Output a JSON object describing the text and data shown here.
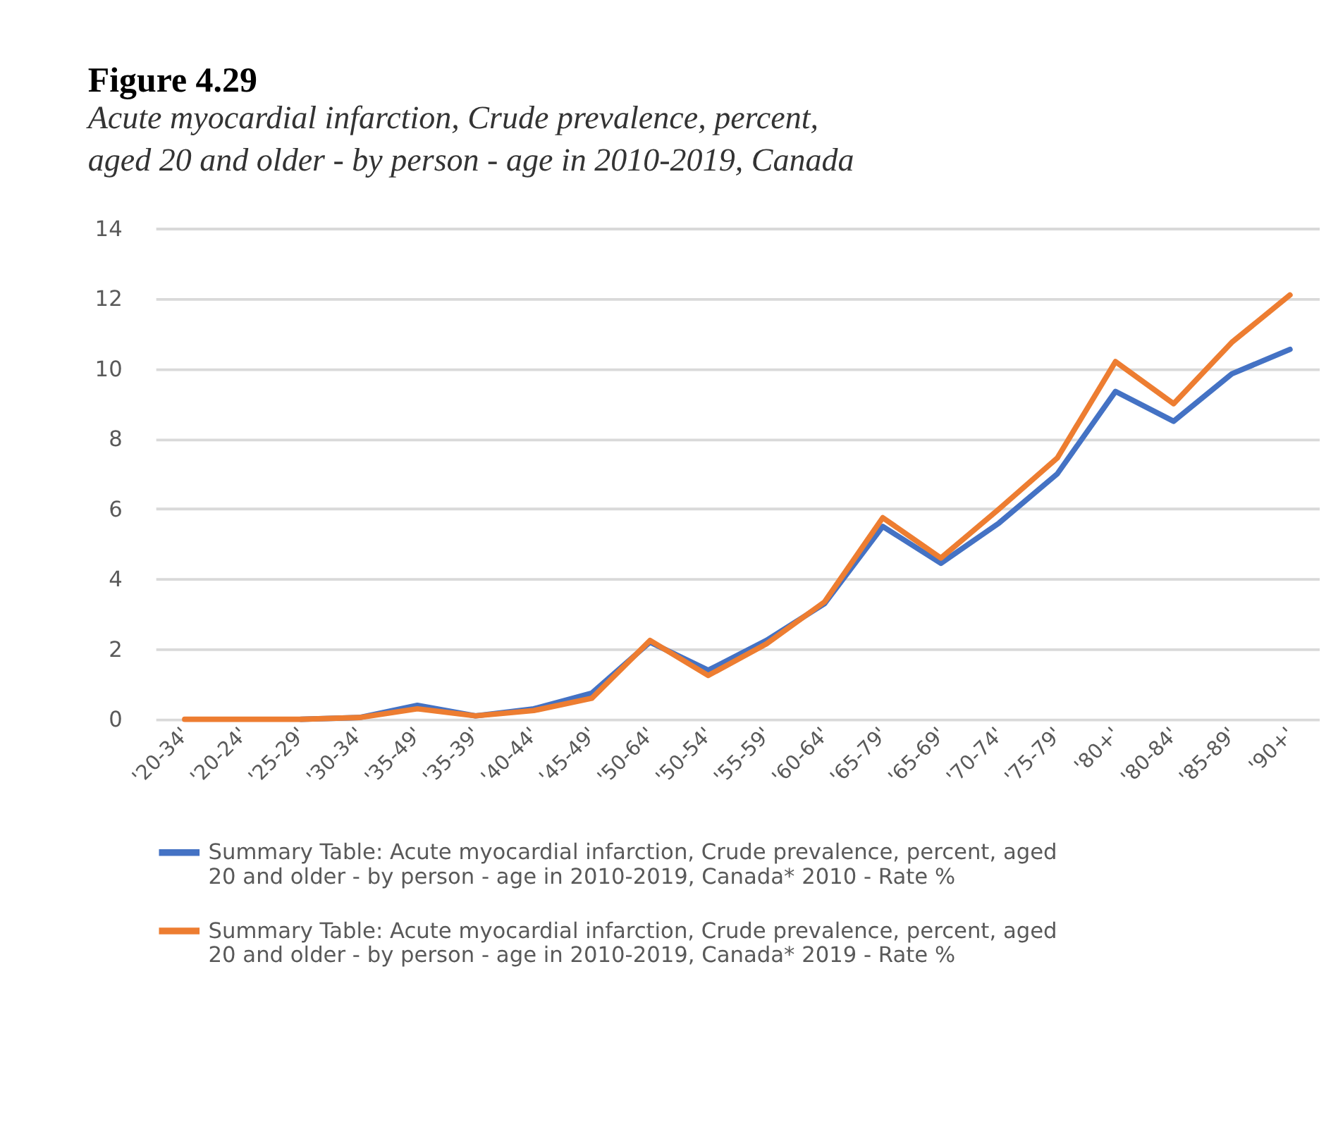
{
  "chart_data": {
    "type": "line",
    "title": "Figure 4.29",
    "subtitle": "Acute myocardial infarction, Crude prevalence, percent, aged 20 and older - by person - age in 2010-2019, Canada",
    "categories": [
      "'20-34'",
      "'20-24'",
      "'25-29'",
      "'30-34'",
      "'35-49'",
      "'35-39'",
      "'40-44'",
      "'45-49'",
      "'50-64'",
      "'50-54'",
      "'55-59'",
      "'60-64'",
      "'65-79'",
      "'65-69'",
      "'70-74'",
      "'75-79'",
      "'80+'",
      "'80-84'",
      "'85-89'",
      "'90+'"
    ],
    "series": [
      {
        "name": "Summary Table: Acute myocardial infarction, Crude prevalence, percent, aged 20 and older - by person - age in 2010-2019, Canada* 2010 - Rate %",
        "color": "#4472c4",
        "values": [
          null,
          null,
          0,
          0.05,
          0.4,
          0.1,
          0.3,
          0.75,
          2.2,
          1.4,
          2.25,
          3.3,
          5.5,
          4.45,
          5.6,
          7.0,
          9.35,
          8.5,
          9.85,
          10.55
        ]
      },
      {
        "name": "Summary Table: Acute myocardial infarction, Crude prevalence, percent, aged 20 and older - by person - age in 2010-2019, Canada* 2019 - Rate %",
        "color": "#ed7d31",
        "values": [
          0,
          0,
          0,
          0.05,
          0.3,
          0.1,
          0.25,
          0.6,
          2.25,
          1.25,
          2.15,
          3.35,
          5.75,
          4.6,
          6.0,
          7.45,
          10.2,
          9.0,
          10.75,
          12.1
        ]
      }
    ],
    "ylim": [
      0,
      14
    ],
    "yticks": [
      0,
      2,
      4,
      6,
      8,
      10,
      12,
      14
    ],
    "grid": "y",
    "legend": "bottom",
    "marker": "none",
    "line_style": "solid"
  }
}
